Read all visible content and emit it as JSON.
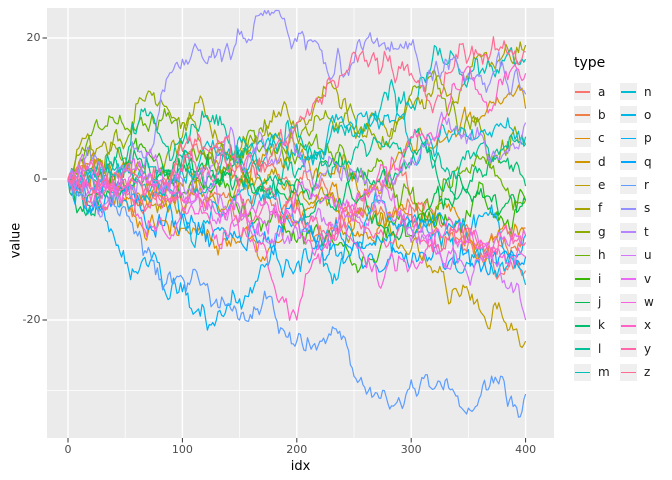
{
  "chart_data": {
    "type": "line",
    "title": "",
    "xlabel": "idx",
    "ylabel": "value",
    "legend_title": "type",
    "legend_position": "right",
    "grid": true,
    "x_ticks": [
      0,
      100,
      200,
      300,
      400
    ],
    "x_minor_ticks": [
      50,
      150,
      250,
      350
    ],
    "y_ticks": [
      20,
      0,
      -20
    ],
    "y_minor_ticks": [
      10,
      -10,
      -30
    ],
    "x_range": [
      0,
      400
    ],
    "y_range": [
      -34,
      22
    ],
    "colors": {
      "panel_background": "#EBEBEB",
      "gridline": "#FFFFFF",
      "tick_mark": "#333333",
      "tick_label": "#4D4D4D",
      "axis_title": "#000000",
      "legend_key_fill": "#EFEFEF"
    },
    "keypoint_x": [
      0,
      50,
      100,
      150,
      200,
      250,
      300,
      350,
      400
    ],
    "series": [
      {
        "name": "a",
        "color": "#F8766D",
        "values": [
          0,
          -1,
          2,
          0,
          -2,
          -5,
          -3,
          -9,
          -13
        ]
      },
      {
        "name": "b",
        "color": "#EF7F49",
        "values": [
          0,
          -2,
          -4,
          -6,
          -3,
          -5,
          -4,
          -7,
          -7
        ]
      },
      {
        "name": "c",
        "color": "#DF8D00",
        "values": [
          0,
          -3,
          -7,
          -9,
          -6,
          -8,
          -5,
          -8,
          -8
        ]
      },
      {
        "name": "d",
        "color": "#D09600",
        "values": [
          0,
          2,
          -1,
          2,
          4,
          1,
          5,
          9,
          10
        ]
      },
      {
        "name": "e",
        "color": "#BD9D00",
        "values": [
          0,
          -2,
          -4,
          -1,
          -4,
          -7,
          -10,
          -16,
          -23
        ]
      },
      {
        "name": "f",
        "color": "#A6A400",
        "values": [
          0,
          3,
          6,
          4,
          8,
          7,
          11,
          14,
          19
        ]
      },
      {
        "name": "g",
        "color": "#8CAB00",
        "values": [
          0,
          5,
          8,
          3,
          6,
          9,
          12,
          8,
          5
        ]
      },
      {
        "name": "h",
        "color": "#6BB100",
        "values": [
          0,
          7,
          4,
          2,
          3,
          0,
          -2,
          1,
          -3
        ]
      },
      {
        "name": "i",
        "color": "#39B600",
        "values": [
          0,
          2,
          -2,
          -5,
          -9,
          -12,
          -8,
          -5,
          -3
        ]
      },
      {
        "name": "j",
        "color": "#00BB4E",
        "values": [
          0,
          -1,
          1,
          3,
          0,
          -3,
          -6,
          -2,
          -3
        ]
      },
      {
        "name": "k",
        "color": "#00BE70",
        "values": [
          0,
          1,
          3,
          0,
          -2,
          0,
          2,
          -1,
          -1
        ]
      },
      {
        "name": "l",
        "color": "#00C19A",
        "values": [
          0,
          2,
          5,
          3,
          1,
          4,
          6,
          4,
          5
        ]
      },
      {
        "name": "m",
        "color": "#00C0B8",
        "values": [
          0,
          1,
          3,
          6,
          8,
          6,
          10,
          14,
          17
        ]
      },
      {
        "name": "n",
        "color": "#00BDD2",
        "values": [
          0,
          -2,
          1,
          3,
          5,
          7,
          4,
          6,
          6
        ]
      },
      {
        "name": "o",
        "color": "#00B8E7",
        "values": [
          0,
          -3,
          -5,
          -2,
          -6,
          -9,
          -7,
          -12,
          -15
        ]
      },
      {
        "name": "p",
        "color": "#00B0F6",
        "values": [
          0,
          -12,
          -16,
          -17,
          -12,
          -9,
          -6,
          -9,
          -8
        ]
      },
      {
        "name": "q",
        "color": "#00A7FF",
        "values": [
          0,
          -1,
          -5,
          -8,
          -6,
          -9,
          -12,
          -10,
          -11
        ]
      },
      {
        "name": "r",
        "color": "#5C9DFF",
        "values": [
          0,
          -4,
          -14,
          -20,
          -23,
          -28,
          -28.5,
          -32.5,
          -30.5
        ]
      },
      {
        "name": "s",
        "color": "#9590FF",
        "values": [
          0,
          1,
          17,
          20.5,
          19.5,
          16.5,
          19,
          15,
          12
        ]
      },
      {
        "name": "t",
        "color": "#B685FF",
        "values": [
          0,
          -2,
          0,
          2,
          4,
          1,
          3,
          6,
          8
        ]
      },
      {
        "name": "u",
        "color": "#D475FB",
        "values": [
          0,
          1,
          -2,
          -4,
          -7,
          -5,
          -9,
          -14,
          -20
        ]
      },
      {
        "name": "v",
        "color": "#E76BF3",
        "values": [
          0,
          -1,
          -3,
          -5,
          -2,
          -4,
          -7,
          -9,
          -8
        ]
      },
      {
        "name": "w",
        "color": "#F763DF",
        "values": [
          0,
          -2,
          -4,
          -2,
          -6,
          -9,
          -12,
          -9,
          -11
        ]
      },
      {
        "name": "x",
        "color": "#FF61C7",
        "values": [
          0,
          0,
          -3,
          -8,
          -20,
          -4,
          6,
          16,
          15
        ]
      },
      {
        "name": "y",
        "color": "#FF67A8",
        "values": [
          0,
          -1,
          1,
          -2,
          -4,
          -6,
          -4,
          -7,
          -9
        ]
      },
      {
        "name": "z",
        "color": "#FF6C91",
        "values": [
          0,
          1,
          4,
          2,
          8,
          18,
          15,
          17,
          18
        ]
      }
    ]
  }
}
